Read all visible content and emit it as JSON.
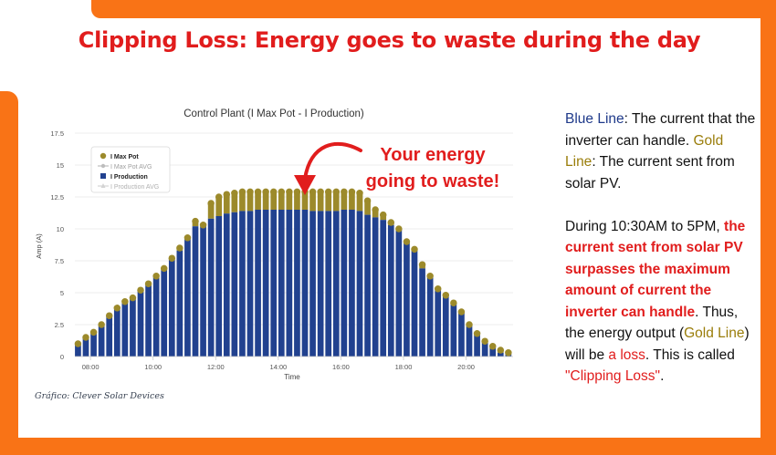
{
  "headline": "Clipping Loss: Energy goes to waste during the day",
  "callout": {
    "line1": "Your energy",
    "line2": "going to waste!"
  },
  "credit": "Gráfico: Clever Solar Devices",
  "explanation": {
    "blue_label": "Blue Line",
    "blue_text": ": The current that the inverter can handle.",
    "gold_label": "Gold Line",
    "gold_text": ": The current sent from solar PV.",
    "p2_intro": "During 10:30AM to 5PM, ",
    "p2_bold": "the current sent from solar PV surpasses the maximum amount of current the inverter can handle",
    "p2_mid": ". Thus, the energy output (",
    "p2_gold": "Gold Line",
    "p2_mid2": ") will be ",
    "p2_loss": "a loss",
    "p2_mid3": ". This is called ",
    "p2_term": "\"Clipping Loss\"",
    "p2_end": "."
  },
  "colors": {
    "orange": "#f97316",
    "headline_red": "#e11d1d",
    "production_blue": "#21418f",
    "max_pot_gold": "#9c8a2b",
    "max_pot_avg": "#bdbdbd",
    "production_avg": "#d4d4d4"
  },
  "chart_data": {
    "type": "bar",
    "title": "Control Plant (I Max Pot - I Production)",
    "xlabel": "Time",
    "ylabel": "Amp (A)",
    "ylim": [
      0,
      17.5
    ],
    "yticks": [
      0,
      2.5,
      5,
      7.5,
      10,
      12.5,
      15,
      17.5
    ],
    "xlim": [
      7.5,
      21.5
    ],
    "xticks": [
      8,
      10,
      12,
      14,
      16,
      18,
      20
    ],
    "xtick_labels": [
      "08:00",
      "10:00",
      "12:00",
      "14:00",
      "16:00",
      "18:00",
      "20:00"
    ],
    "legend": [
      "I Max Pot",
      "I Max Pot AVG",
      "I Production",
      "I Production AVG"
    ],
    "x": [
      7.6,
      7.85,
      8.1,
      8.35,
      8.6,
      8.85,
      9.1,
      9.35,
      9.6,
      9.85,
      10.1,
      10.35,
      10.6,
      10.85,
      11.1,
      11.35,
      11.6,
      11.85,
      12.1,
      12.35,
      12.6,
      12.85,
      13.1,
      13.35,
      13.6,
      13.85,
      14.1,
      14.35,
      14.6,
      14.85,
      15.1,
      15.35,
      15.6,
      15.85,
      16.1,
      16.35,
      16.6,
      16.85,
      17.1,
      17.35,
      17.6,
      17.85,
      18.1,
      18.35,
      18.6,
      18.85,
      19.1,
      19.35,
      19.6,
      19.85,
      20.1,
      20.35,
      20.6,
      20.85,
      21.1,
      21.35
    ],
    "series": [
      {
        "name": "I Max Pot",
        "values": [
          1.0,
          1.5,
          1.9,
          2.5,
          3.2,
          3.8,
          4.3,
          4.6,
          5.2,
          5.7,
          6.3,
          6.9,
          7.7,
          8.5,
          9.3,
          10.6,
          10.3,
          12.0,
          12.5,
          12.7,
          12.8,
          12.9,
          12.9,
          12.9,
          12.9,
          12.9,
          12.9,
          12.9,
          12.9,
          12.9,
          12.9,
          12.9,
          12.9,
          12.9,
          12.9,
          12.9,
          12.8,
          12.2,
          11.5,
          11.1,
          10.5,
          10.0,
          9.0,
          8.4,
          7.2,
          6.3,
          5.3,
          4.8,
          4.2,
          3.5,
          2.5,
          1.8,
          1.2,
          0.8,
          0.5,
          0.3
        ]
      },
      {
        "name": "I Production",
        "values": [
          1.0,
          1.5,
          1.9,
          2.5,
          3.2,
          3.8,
          4.3,
          4.6,
          5.2,
          5.7,
          6.3,
          6.9,
          7.7,
          8.3,
          9.3,
          10.2,
          10.3,
          10.8,
          11.0,
          11.2,
          11.3,
          11.4,
          11.4,
          11.5,
          11.5,
          11.5,
          11.5,
          11.5,
          11.5,
          11.5,
          11.4,
          11.4,
          11.4,
          11.4,
          11.5,
          11.5,
          11.4,
          11.1,
          10.9,
          10.7,
          10.3,
          10.0,
          9.0,
          8.4,
          6.9,
          6.3,
          5.3,
          4.8,
          4.2,
          3.5,
          2.5,
          1.8,
          1.2,
          0.8,
          0.3,
          0.2
        ]
      }
    ]
  }
}
